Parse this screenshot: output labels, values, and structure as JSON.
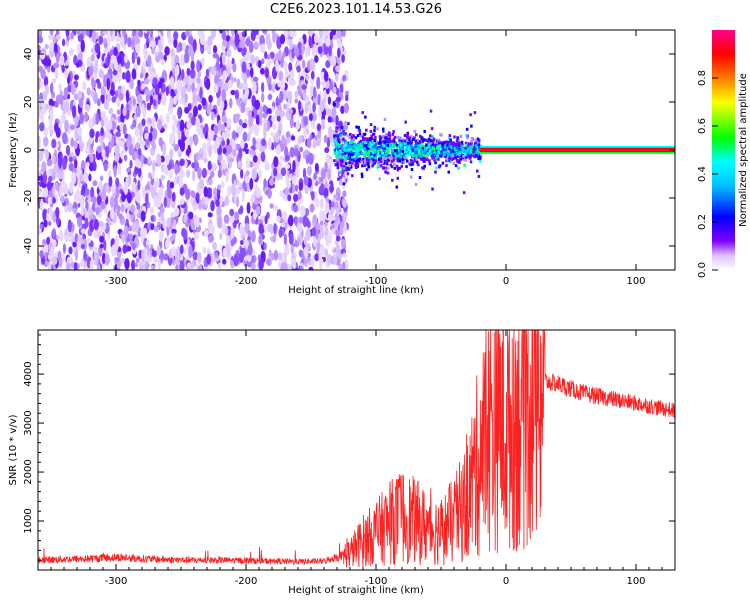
{
  "title": "C2E6.2023.101.14.53.G26",
  "chart_data": [
    {
      "type": "heatmap",
      "xlabel": "Height of straight line (km)",
      "ylabel": "Frequency (Hz)",
      "xlim": [
        -360,
        130
      ],
      "ylim": [
        -50,
        50
      ],
      "xticks": [
        -300,
        -200,
        -100,
        0,
        100
      ],
      "yticks": [
        -40,
        -20,
        0,
        20,
        40
      ],
      "colorbar": {
        "label": "Normalized spectral amplitude",
        "range": [
          0,
          1
        ],
        "ticks": [
          "0.0",
          "0.2",
          "0.4",
          "0.6",
          "0.8"
        ],
        "colormap": [
          "#ffffff",
          "#8000ff",
          "#0000ff",
          "#00ffff",
          "#00ff00",
          "#ffff00",
          "#ff0000",
          "#ff00ff"
        ]
      },
      "regions": [
        {
          "x_range": [
            -360,
            -133
          ],
          "description": "broadband noise",
          "amplitude": 0.05
        },
        {
          "x_range": [
            -133,
            -20
          ],
          "description": "signal onset, spread ±8 Hz",
          "amplitude": 0.25
        },
        {
          "x_range": [
            -20,
            130
          ],
          "description": "coherent carrier near 0 Hz",
          "amplitude": 0.95
        }
      ]
    },
    {
      "type": "line",
      "xlabel": "Height of straight line (km)",
      "ylabel": "SNR (10 * v/v)",
      "xlim": [
        -360,
        130
      ],
      "ylim": [
        0,
        4900
      ],
      "xticks": [
        -300,
        -200,
        -100,
        0,
        100
      ],
      "yticks": [
        1000,
        2000,
        3000,
        4000
      ],
      "series": [
        {
          "color": "#ff2020",
          "x": [
            -360,
            -340,
            -320,
            -300,
            -280,
            -260,
            -240,
            -220,
            -200,
            -180,
            -160,
            -140,
            -120,
            -110,
            -100,
            -90,
            -80,
            -70,
            -60,
            -50,
            -40,
            -30,
            -25,
            -20,
            -15,
            -10,
            -5,
            0,
            10,
            20,
            30,
            40,
            50,
            60,
            70,
            80,
            90,
            100,
            110,
            120,
            130
          ],
          "values": [
            200,
            220,
            230,
            260,
            230,
            210,
            200,
            200,
            190,
            180,
            170,
            180,
            350,
            600,
            750,
            950,
            1100,
            1000,
            850,
            800,
            1000,
            1400,
            1900,
            2300,
            2700,
            3100,
            3200,
            2900,
            3300,
            3700,
            3850,
            3800,
            3700,
            3600,
            3550,
            3500,
            3450,
            3400,
            3350,
            3300,
            3250
          ]
        }
      ]
    }
  ]
}
